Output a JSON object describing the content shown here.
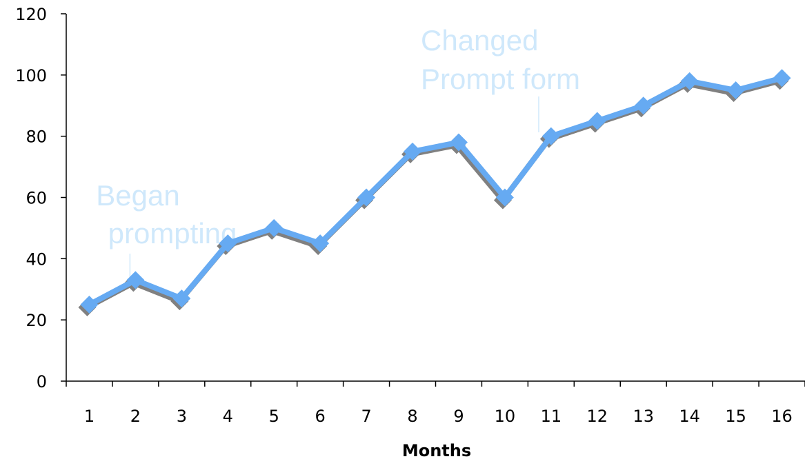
{
  "chart_data": {
    "type": "line",
    "title": "",
    "xlabel": "Months",
    "ylabel": "",
    "x": [
      1,
      2,
      3,
      4,
      5,
      6,
      7,
      8,
      9,
      10,
      11,
      12,
      13,
      14,
      15,
      16
    ],
    "series": [
      {
        "values": [
          25,
          33,
          27,
          45,
          50,
          45,
          60,
          75,
          78,
          60,
          80,
          85,
          90,
          98,
          95,
          99
        ]
      }
    ],
    "ylim": [
      0,
      120
    ],
    "yticks": [
      0,
      20,
      40,
      60,
      80,
      100,
      120
    ],
    "grid": false,
    "legend": "none",
    "colors": {
      "line": "#66aaf2",
      "shadow": "#808080",
      "annotation": "#cfe8fb",
      "axis": "#000000"
    },
    "annotations": [
      {
        "lines": [
          "Began",
          "prompting"
        ],
        "x": 2,
        "y": 40
      },
      {
        "lines": [
          "Changed",
          "Prompt form"
        ],
        "x": 10.7,
        "y": 82
      }
    ]
  }
}
